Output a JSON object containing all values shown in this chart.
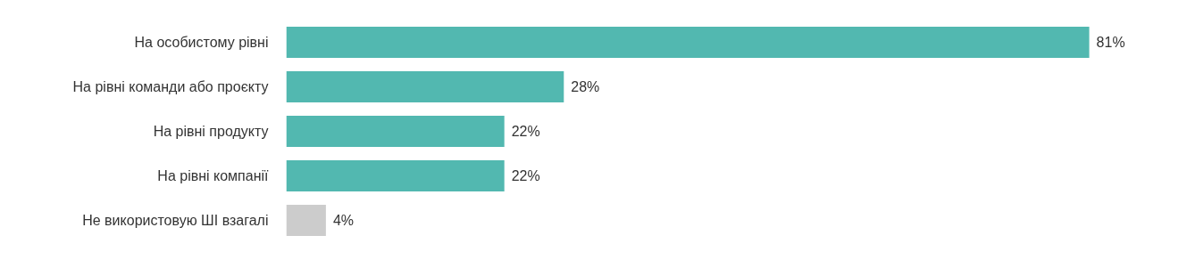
{
  "chart_data": {
    "type": "bar",
    "orientation": "horizontal",
    "categories": [
      "На особистому рівні",
      "На рівні команди або проєкту",
      "На рівні продукту",
      "На рівні компанії",
      "Не використовую ШІ взагалі"
    ],
    "values": [
      81,
      28,
      22,
      22,
      4
    ],
    "colors": [
      "#52b8b0",
      "#52b8b0",
      "#52b8b0",
      "#52b8b0",
      "#cccccc"
    ],
    "value_labels": [
      "81%",
      "28%",
      "22%",
      "22%",
      "4%"
    ],
    "grid": false,
    "tick_labels": "y"
  }
}
